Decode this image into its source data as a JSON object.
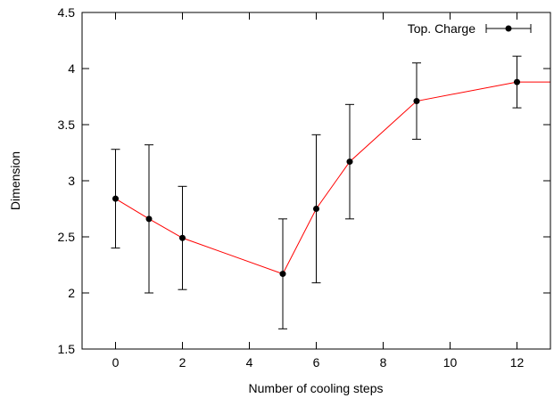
{
  "chart_data": {
    "type": "line",
    "xlabel": "Number of cooling steps",
    "ylabel": "Dimension",
    "xlim": [
      -1,
      13
    ],
    "ylim": [
      1.5,
      4.5
    ],
    "xticks": [
      0,
      2,
      4,
      6,
      8,
      10,
      12
    ],
    "yticks": [
      1.5,
      2,
      2.5,
      3,
      3.5,
      4,
      4.5
    ],
    "xtick_labels": [
      "0",
      "2",
      "4",
      "6",
      "8",
      "10",
      "12"
    ],
    "ytick_labels": [
      "1.5",
      "2",
      "2.5",
      "3",
      "3.5",
      "4",
      "4.5"
    ],
    "legend_position": "top-right",
    "grid": false,
    "series": [
      {
        "name": "Top. Charge",
        "line_color": "#ff0000",
        "marker_color": "#000000",
        "points": [
          {
            "x": 0,
            "y": 2.84,
            "ylow": 2.4,
            "yhigh": 3.28
          },
          {
            "x": 1,
            "y": 2.66,
            "ylow": 2.0,
            "yhigh": 3.32
          },
          {
            "x": 2,
            "y": 2.49,
            "ylow": 2.03,
            "yhigh": 2.95
          },
          {
            "x": 5,
            "y": 2.17,
            "ylow": 1.68,
            "yhigh": 2.66
          },
          {
            "x": 6,
            "y": 2.75,
            "ylow": 2.09,
            "yhigh": 3.41
          },
          {
            "x": 7,
            "y": 3.17,
            "ylow": 2.66,
            "yhigh": 3.68
          },
          {
            "x": 9,
            "y": 3.71,
            "ylow": 3.37,
            "yhigh": 4.05
          },
          {
            "x": 12,
            "y": 3.88,
            "ylow": 3.65,
            "yhigh": 4.11
          },
          {
            "x": 13,
            "y": 3.88
          }
        ]
      }
    ]
  }
}
